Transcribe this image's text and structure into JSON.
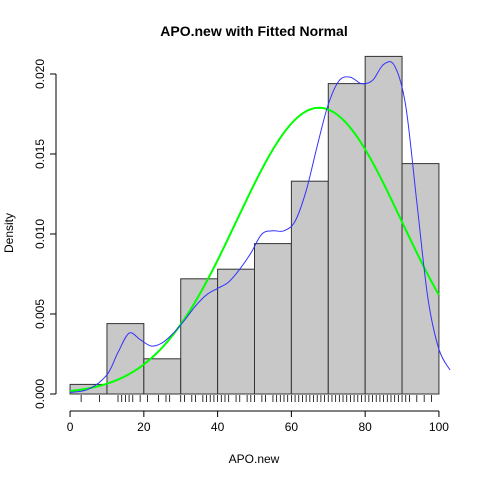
{
  "chart_data": {
    "type": "histogram",
    "title": "APO.new with Fitted Normal",
    "xlabel": "APO.new",
    "ylabel": "Density",
    "xlim": [
      -3,
      103
    ],
    "ylim": [
      0,
      0.021
    ],
    "x_ticks": [
      0,
      20,
      40,
      60,
      80,
      100
    ],
    "x_tick_labels": [
      "0",
      "20",
      "40",
      "60",
      "80",
      "100"
    ],
    "y_ticks": [
      0,
      0.005,
      0.01,
      0.015,
      0.02
    ],
    "y_tick_labels": [
      "0.000",
      "0.005",
      "0.010",
      "0.015",
      "0.020"
    ],
    "bins": [
      {
        "x0": 0,
        "x1": 10,
        "density": 0.0006
      },
      {
        "x0": 10,
        "x1": 20,
        "density": 0.0044
      },
      {
        "x0": 20,
        "x1": 30,
        "density": 0.0022
      },
      {
        "x0": 30,
        "x1": 40,
        "density": 0.0072
      },
      {
        "x0": 40,
        "x1": 50,
        "density": 0.0078
      },
      {
        "x0": 50,
        "x1": 60,
        "density": 0.0094
      },
      {
        "x0": 60,
        "x1": 70,
        "density": 0.0133
      },
      {
        "x0": 70,
        "x1": 80,
        "density": 0.0194
      },
      {
        "x0": 80,
        "x1": 90,
        "density": 0.0211
      },
      {
        "x0": 90,
        "x1": 100,
        "density": 0.0144
      }
    ],
    "normal_fit": {
      "mean": 67.5,
      "sd": 22.3
    },
    "density_curve": {
      "x": [
        0,
        5,
        10,
        13,
        16,
        19,
        22,
        25,
        28,
        31,
        34,
        37,
        40,
        43,
        46,
        49,
        52,
        55,
        58,
        61,
        64,
        67,
        70,
        73,
        76,
        79,
        82,
        85,
        88,
        91,
        94,
        97,
        100,
        103
      ],
      "y": [
        0.0001,
        0.0003,
        0.0012,
        0.0026,
        0.0038,
        0.0034,
        0.003,
        0.0032,
        0.0038,
        0.0046,
        0.0055,
        0.0062,
        0.0066,
        0.007,
        0.0078,
        0.0088,
        0.01,
        0.0102,
        0.0102,
        0.0108,
        0.0127,
        0.0155,
        0.0181,
        0.0196,
        0.0198,
        0.0194,
        0.0196,
        0.0206,
        0.0205,
        0.018,
        0.012,
        0.006,
        0.0028,
        0.0015
      ]
    },
    "rug": [
      3,
      8,
      13,
      14,
      15,
      16,
      17,
      19,
      21,
      24,
      26,
      27,
      30,
      31,
      33,
      34,
      36,
      37,
      38,
      39,
      40,
      41,
      42,
      43,
      45,
      46,
      48,
      49,
      50,
      52,
      53,
      55,
      56,
      57,
      58,
      59,
      60,
      61,
      62,
      63,
      64,
      65,
      66,
      67,
      68,
      69,
      70,
      71,
      72,
      73,
      74,
      75,
      76,
      77,
      78,
      79,
      80,
      81,
      82,
      83,
      84,
      85,
      86,
      87,
      88,
      89,
      90,
      91,
      92,
      94,
      96,
      98
    ],
    "colors": {
      "bar_fill": "#c8c8c8",
      "bar_stroke": "#333333",
      "normal_curve": "#00ff00",
      "density_curve": "#3333ff",
      "rug": "#000000"
    }
  }
}
